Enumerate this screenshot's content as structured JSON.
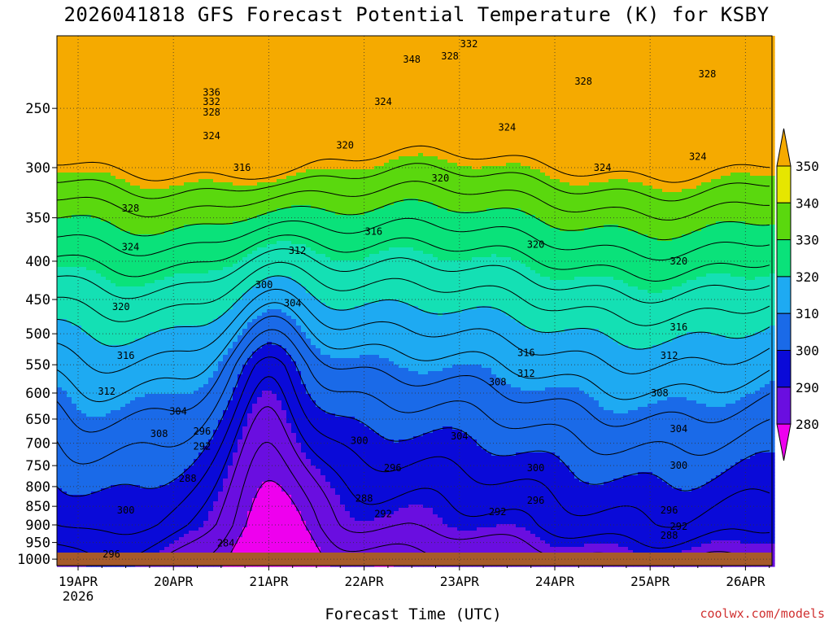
{
  "title": "2026041818 GFS Forecast Potential Temperature (K) for KSBY",
  "credit": "coolwx.com/models",
  "chart_data": {
    "type": "heatmap",
    "title": "2026041818 GFS Forecast Potential Temperature (K) for KSBY",
    "xlabel": "Forecast Time (UTC)",
    "ylabel": "",
    "x_ticks": [
      "19APR",
      "20APR",
      "21APR",
      "22APR",
      "23APR",
      "24APR",
      "25APR",
      "26APR"
    ],
    "x_year_label": "2026",
    "y_ticks": [
      250,
      300,
      350,
      400,
      450,
      500,
      550,
      600,
      650,
      700,
      750,
      800,
      850,
      900,
      950,
      1000
    ],
    "y_scale": "log",
    "y_range_hpa": [
      1020,
      200
    ],
    "x_range_hours_after_19APR00": [
      -6,
      174
    ],
    "levels": [
      280,
      284,
      288,
      292,
      296,
      300,
      304,
      308,
      312,
      316,
      320,
      324,
      328,
      332,
      336,
      340,
      344,
      348,
      352
    ],
    "colorbar_labels": [
      280,
      290,
      300,
      310,
      320,
      330,
      340,
      350
    ],
    "colorbar_colors": [
      "#ee00ee",
      "#9b1ee6",
      "#6a0ee0",
      "#0a0ad8",
      "#1a6ae8",
      "#1eaaf2",
      "#14e0b4",
      "#0ae27a",
      "#5ad80e",
      "#e6e600",
      "#f5aa00"
    ],
    "contour_labels": [
      {
        "text": "348",
        "t": 3.5,
        "p": 215
      },
      {
        "text": "332",
        "t": 4.1,
        "p": 205
      },
      {
        "text": "328",
        "t": 3.9,
        "p": 213
      },
      {
        "text": "336",
        "t": 1.4,
        "p": 238
      },
      {
        "text": "332",
        "t": 1.4,
        "p": 245
      },
      {
        "text": "328",
        "t": 1.4,
        "p": 253
      },
      {
        "text": "324",
        "t": 1.4,
        "p": 272
      },
      {
        "text": "324",
        "t": 3.2,
        "p": 245
      },
      {
        "text": "328",
        "t": 5.3,
        "p": 230
      },
      {
        "text": "328",
        "t": 6.6,
        "p": 225
      },
      {
        "text": "324",
        "t": 4.5,
        "p": 265
      },
      {
        "text": "320",
        "t": 2.8,
        "p": 280
      },
      {
        "text": "316",
        "t": 1.72,
        "p": 300
      },
      {
        "text": "324",
        "t": 5.5,
        "p": 300
      },
      {
        "text": "324",
        "t": 6.5,
        "p": 290
      },
      {
        "text": "320",
        "t": 3.8,
        "p": 310
      },
      {
        "text": "328",
        "t": 0.55,
        "p": 340
      },
      {
        "text": "324",
        "t": 0.55,
        "p": 383
      },
      {
        "text": "316",
        "t": 3.1,
        "p": 365
      },
      {
        "text": "312",
        "t": 2.3,
        "p": 387
      },
      {
        "text": "320",
        "t": 4.8,
        "p": 380
      },
      {
        "text": "320",
        "t": 6.3,
        "p": 400
      },
      {
        "text": "320",
        "t": 0.45,
        "p": 460
      },
      {
        "text": "300",
        "t": 1.95,
        "p": 430
      },
      {
        "text": "304",
        "t": 2.25,
        "p": 455
      },
      {
        "text": "316",
        "t": 6.3,
        "p": 490
      },
      {
        "text": "316",
        "t": 0.5,
        "p": 535
      },
      {
        "text": "316",
        "t": 4.7,
        "p": 530
      },
      {
        "text": "312",
        "t": 6.2,
        "p": 535
      },
      {
        "text": "312",
        "t": 0.3,
        "p": 597
      },
      {
        "text": "312",
        "t": 4.7,
        "p": 565
      },
      {
        "text": "308",
        "t": 4.4,
        "p": 580
      },
      {
        "text": "308",
        "t": 6.1,
        "p": 600
      },
      {
        "text": "304",
        "t": 1.05,
        "p": 635
      },
      {
        "text": "308",
        "t": 0.85,
        "p": 680
      },
      {
        "text": "304",
        "t": 4.0,
        "p": 685
      },
      {
        "text": "304",
        "t": 6.3,
        "p": 670
      },
      {
        "text": "296",
        "t": 1.3,
        "p": 675
      },
      {
        "text": "292",
        "t": 1.3,
        "p": 707
      },
      {
        "text": "300",
        "t": 2.95,
        "p": 695
      },
      {
        "text": "296",
        "t": 3.3,
        "p": 755
      },
      {
        "text": "300",
        "t": 4.8,
        "p": 755
      },
      {
        "text": "300",
        "t": 6.3,
        "p": 750
      },
      {
        "text": "288",
        "t": 1.15,
        "p": 780
      },
      {
        "text": "288",
        "t": 3.0,
        "p": 830
      },
      {
        "text": "292",
        "t": 3.2,
        "p": 870
      },
      {
        "text": "292",
        "t": 4.4,
        "p": 865
      },
      {
        "text": "296",
        "t": 4.8,
        "p": 835
      },
      {
        "text": "296",
        "t": 6.2,
        "p": 860
      },
      {
        "text": "292",
        "t": 6.3,
        "p": 905
      },
      {
        "text": "288",
        "t": 6.2,
        "p": 930
      },
      {
        "text": "300",
        "t": 0.5,
        "p": 860
      },
      {
        "text": "284",
        "t": 1.55,
        "p": 952
      },
      {
        "text": "296",
        "t": 0.35,
        "p": 985
      }
    ]
  }
}
